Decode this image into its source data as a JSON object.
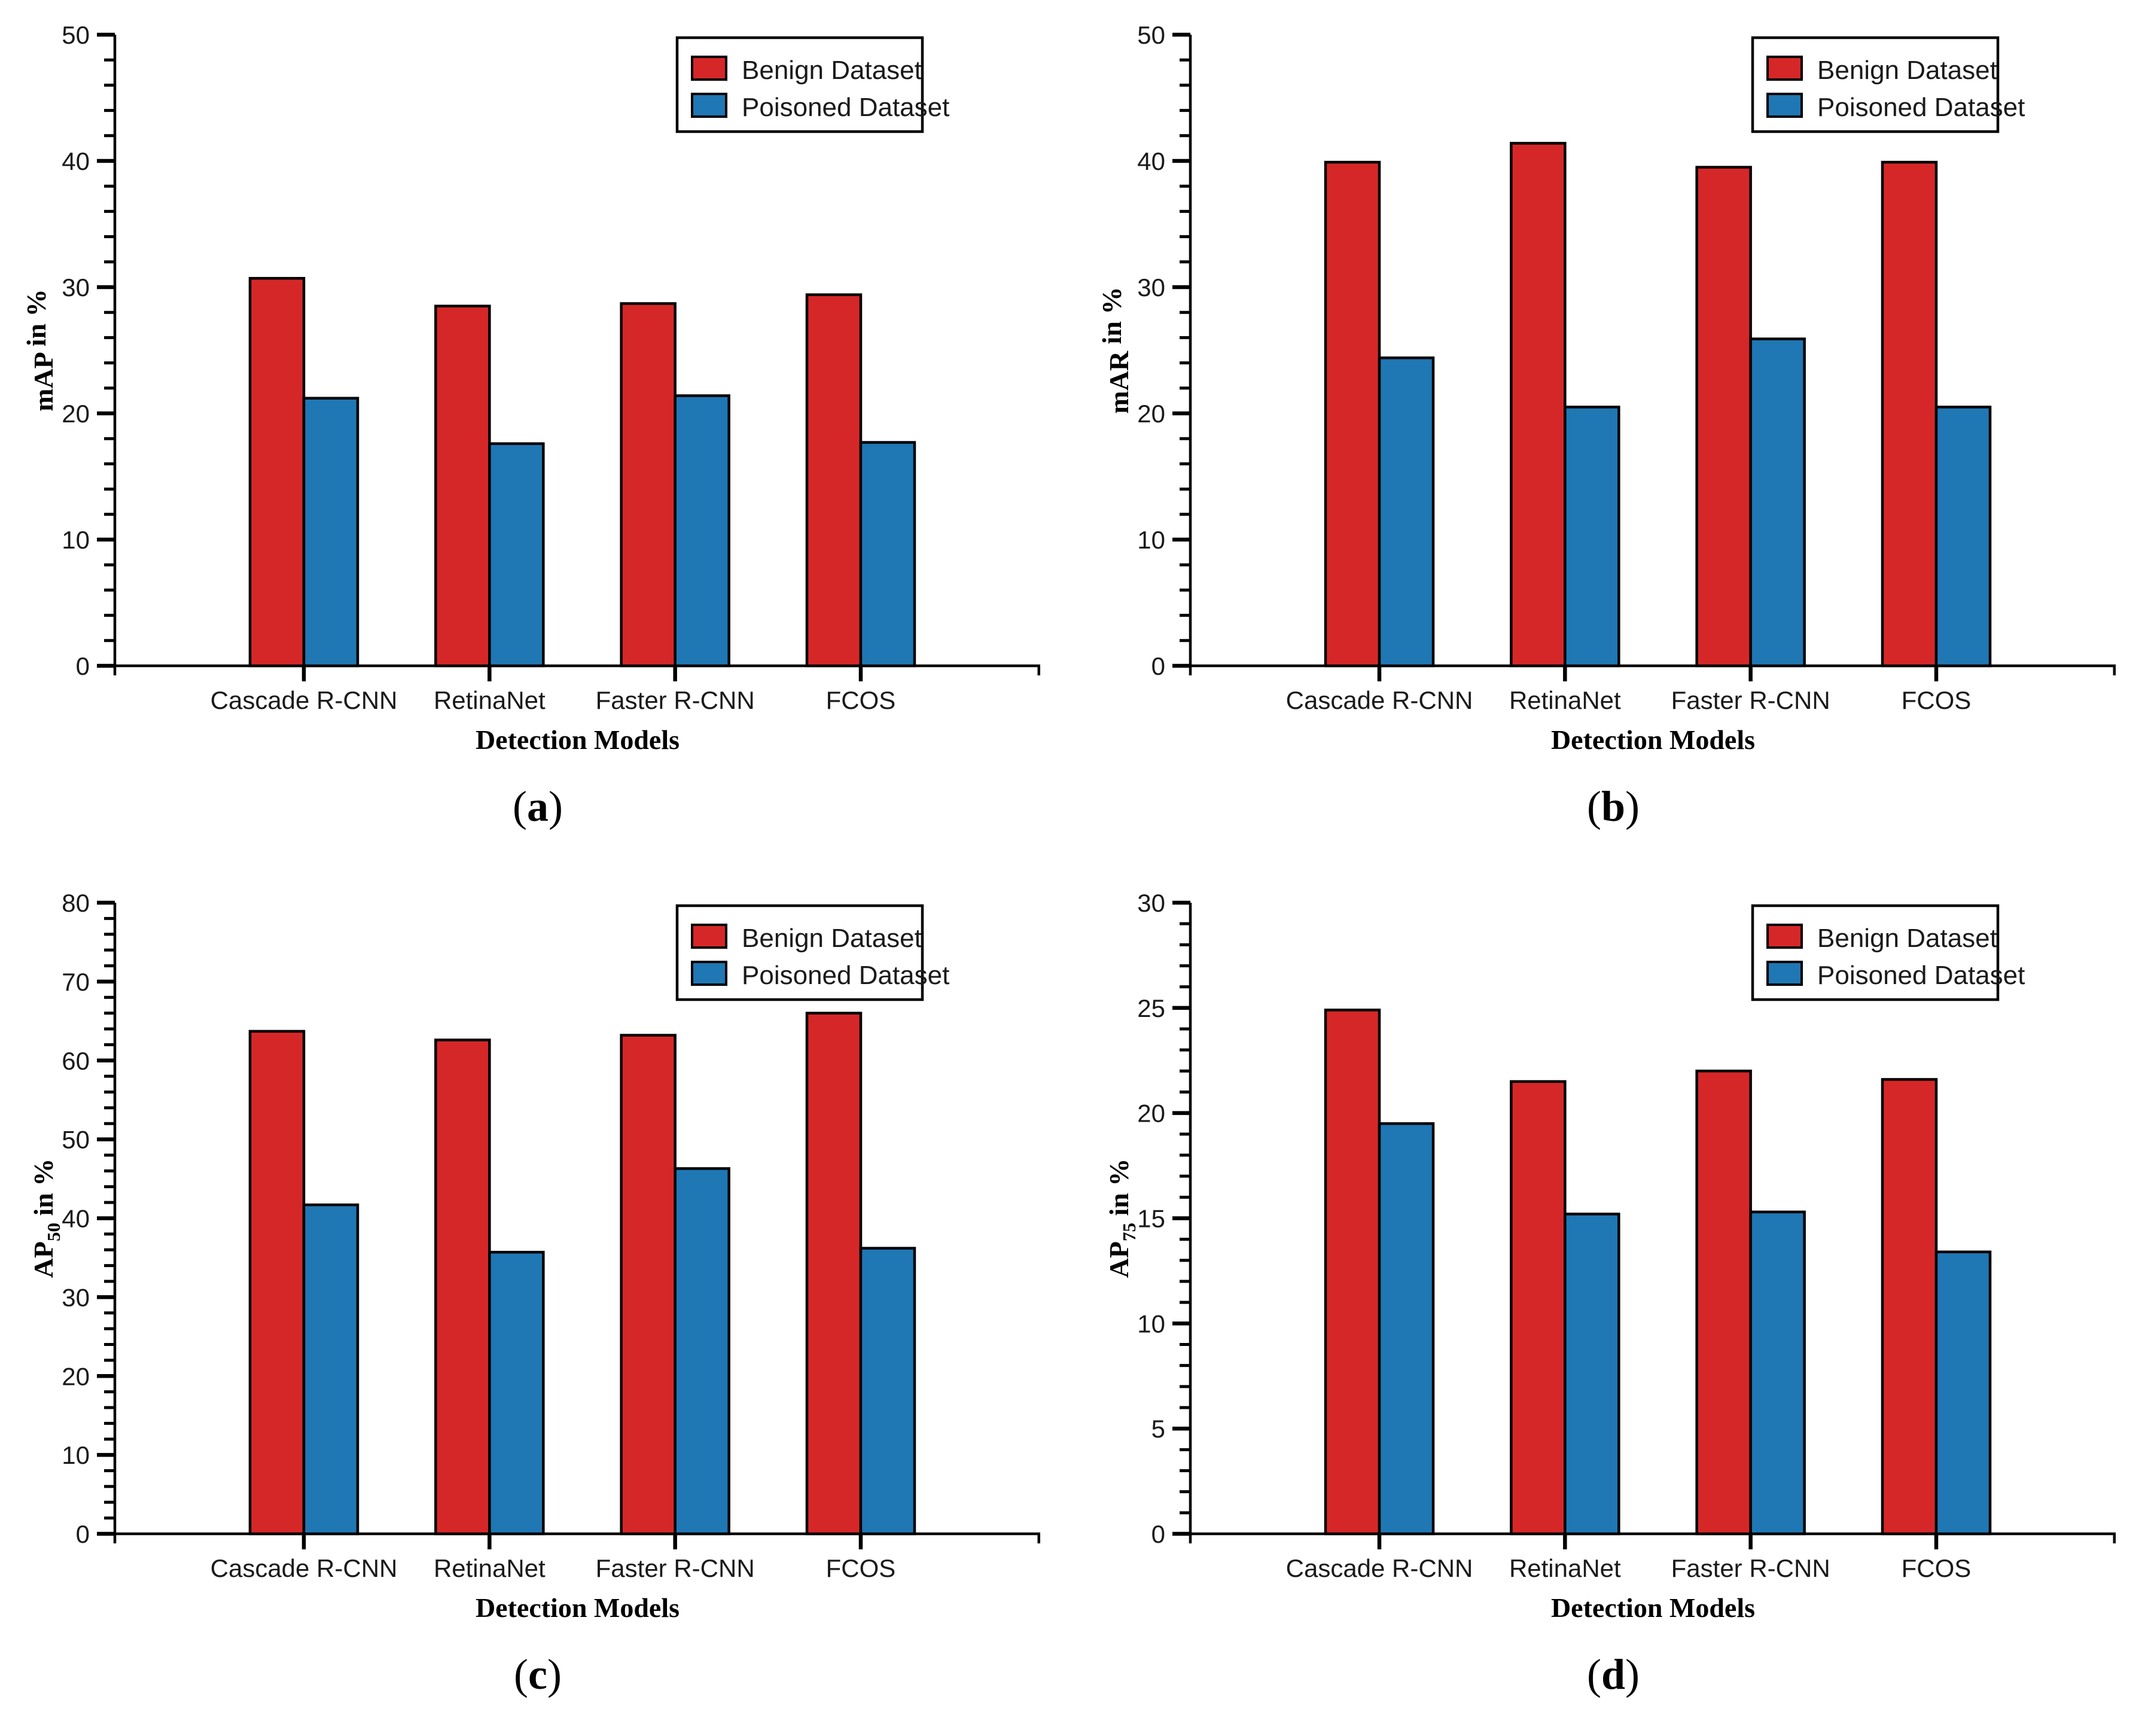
{
  "figure": {
    "background": "#ffffff",
    "text_color": "#1a1a1a",
    "axis_color": "#000000",
    "series_colors": {
      "benign": "#d62728",
      "poisoned": "#1f77b4"
    },
    "legend": {
      "position": "upper-right",
      "border_color": "#000000",
      "fill": "#ffffff",
      "items": [
        {
          "label": "Benign Dataset",
          "color_key": "benign",
          "swatch": "red-rect-icon"
        },
        {
          "label": "Poisoned Dataset",
          "color_key": "poisoned",
          "swatch": "blue-rect-icon"
        }
      ]
    }
  },
  "chart_data": [
    {
      "id": "a",
      "type": "bar",
      "caption": {
        "open": "(",
        "letter": "a",
        "close": ")"
      },
      "xlabel": "Detection Models",
      "ylabel": {
        "pre": "mAP",
        "sub": "",
        "post": " in %"
      },
      "ylim": [
        0,
        50
      ],
      "ytick_step": 10,
      "yminor_step": 2,
      "ytick_labels": [
        "0",
        "10",
        "20",
        "30",
        "40",
        "50"
      ],
      "grid": "off",
      "legend_position": "upper-right",
      "categories": [
        "Cascade R-CNN",
        "RetinaNet",
        "Faster R-CNN",
        "FCOS"
      ],
      "series": [
        {
          "name": "Benign Dataset",
          "color_key": "benign",
          "values": [
            30.7,
            28.5,
            28.7,
            29.4
          ]
        },
        {
          "name": "Poisoned Dataset",
          "color_key": "poisoned",
          "values": [
            21.2,
            17.6,
            21.4,
            17.7
          ]
        }
      ]
    },
    {
      "id": "b",
      "type": "bar",
      "caption": {
        "open": "(",
        "letter": "b",
        "close": ")"
      },
      "xlabel": "Detection Models",
      "ylabel": {
        "pre": "mAR",
        "sub": "",
        "post": " in %"
      },
      "ylim": [
        0,
        50
      ],
      "ytick_step": 10,
      "yminor_step": 2,
      "ytick_labels": [
        "0",
        "10",
        "20",
        "30",
        "40",
        "50"
      ],
      "grid": "off",
      "legend_position": "upper-right",
      "categories": [
        "Cascade R-CNN",
        "RetinaNet",
        "Faster R-CNN",
        "FCOS"
      ],
      "series": [
        {
          "name": "Benign Dataset",
          "color_key": "benign",
          "values": [
            39.9,
            41.4,
            39.5,
            39.9
          ]
        },
        {
          "name": "Poisoned Dataset",
          "color_key": "poisoned",
          "values": [
            24.4,
            20.5,
            25.9,
            20.5
          ]
        }
      ]
    },
    {
      "id": "c",
      "type": "bar",
      "caption": {
        "open": "(",
        "letter": "c",
        "close": ")"
      },
      "xlabel": "Detection Models",
      "ylabel": {
        "pre": "AP",
        "sub": "50",
        "post": " in %"
      },
      "ylim": [
        0,
        80
      ],
      "ytick_step": 10,
      "yminor_step": 2,
      "ytick_labels": [
        "0",
        "10",
        "20",
        "30",
        "40",
        "50",
        "60",
        "70",
        "80"
      ],
      "grid": "off",
      "legend_position": "upper-right",
      "categories": [
        "Cascade R-CNN",
        "RetinaNet",
        "Faster R-CNN",
        "FCOS"
      ],
      "series": [
        {
          "name": "Benign Dataset",
          "color_key": "benign",
          "values": [
            63.7,
            62.6,
            63.2,
            66.0
          ]
        },
        {
          "name": "Poisoned Dataset",
          "color_key": "poisoned",
          "values": [
            41.7,
            35.7,
            46.3,
            36.2
          ]
        }
      ]
    },
    {
      "id": "d",
      "type": "bar",
      "caption": {
        "open": "(",
        "letter": "d",
        "close": ")"
      },
      "xlabel": "Detection Models",
      "ylabel": {
        "pre": "AP",
        "sub": "75",
        "post": " in %"
      },
      "ylim": [
        0,
        30
      ],
      "ytick_step": 5,
      "yminor_step": 1,
      "ytick_labels": [
        "0",
        "5",
        "10",
        "15",
        "20",
        "25",
        "30"
      ],
      "grid": "off",
      "legend_position": "upper-right",
      "categories": [
        "Cascade R-CNN",
        "RetinaNet",
        "Faster R-CNN",
        "FCOS"
      ],
      "series": [
        {
          "name": "Benign Dataset",
          "color_key": "benign",
          "values": [
            24.9,
            21.5,
            22.0,
            21.6
          ]
        },
        {
          "name": "Poisoned Dataset",
          "color_key": "poisoned",
          "values": [
            19.5,
            15.2,
            15.3,
            13.4
          ]
        }
      ]
    }
  ]
}
